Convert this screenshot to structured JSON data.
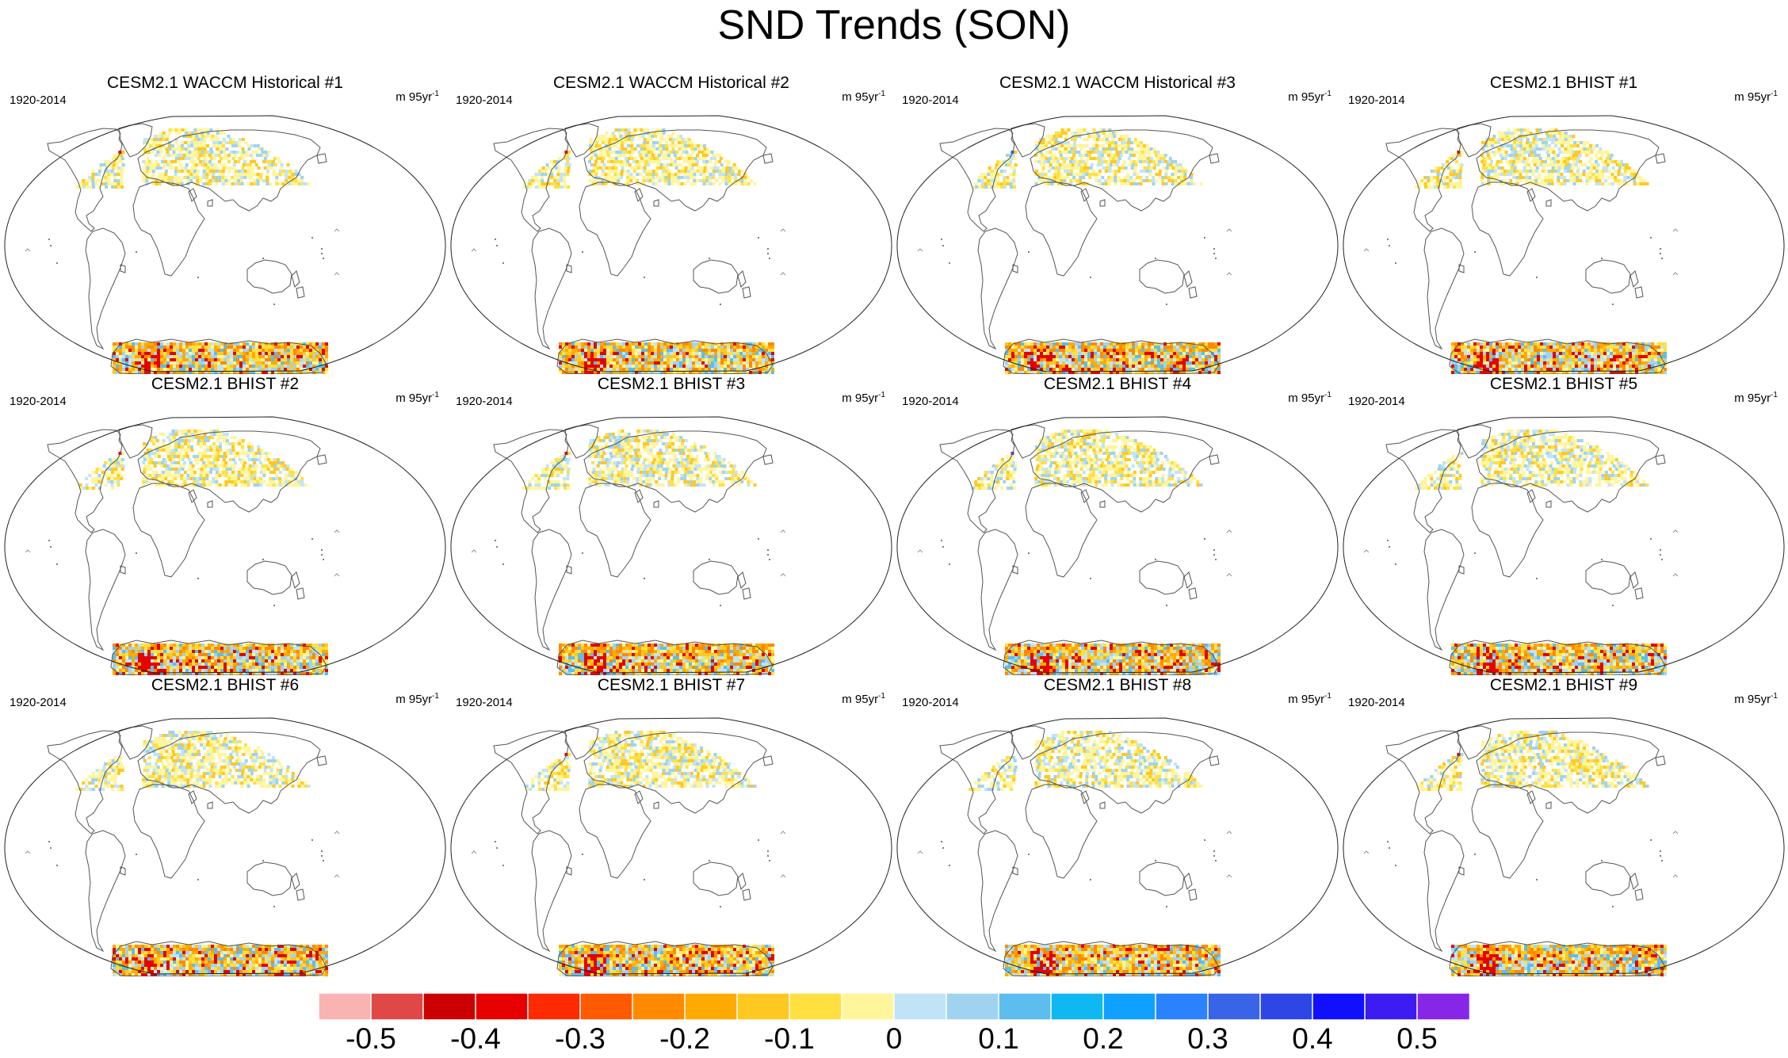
{
  "title": "SND Trends (SON)",
  "panels": [
    {
      "title": "CESM2.1 WACCM Historical #1",
      "period": "1920-2014",
      "units": "m 95yr",
      "units_sup": "-1"
    },
    {
      "title": "CESM2.1 WACCM Historical #2",
      "period": "1920-2014",
      "units": "m 95yr",
      "units_sup": "-1"
    },
    {
      "title": "CESM2.1 WACCM Historical #3",
      "period": "1920-2014",
      "units": "m 95yr",
      "units_sup": "-1"
    },
    {
      "title": "CESM2.1 BHIST #1",
      "period": "1920-2014",
      "units": "m 95yr",
      "units_sup": "-1"
    },
    {
      "title": "CESM2.1 BHIST #2",
      "period": "1920-2014",
      "units": "m 95yr",
      "units_sup": "-1"
    },
    {
      "title": "CESM2.1 BHIST #3",
      "period": "1920-2014",
      "units": "m 95yr",
      "units_sup": "-1"
    },
    {
      "title": "CESM2.1 BHIST #4",
      "period": "1920-2014",
      "units": "m 95yr",
      "units_sup": "-1"
    },
    {
      "title": "CESM2.1 BHIST #5",
      "period": "1920-2014",
      "units": "m 95yr",
      "units_sup": "-1"
    },
    {
      "title": "CESM2.1 BHIST #6",
      "period": "1920-2014",
      "units": "m 95yr",
      "units_sup": "-1"
    },
    {
      "title": "CESM2.1 BHIST #7",
      "period": "1920-2014",
      "units": "m 95yr",
      "units_sup": "-1"
    },
    {
      "title": "CESM2.1 BHIST #8",
      "period": "1920-2014",
      "units": "m 95yr",
      "units_sup": "-1"
    },
    {
      "title": "CESM2.1 BHIST #9",
      "period": "1920-2014",
      "units": "m 95yr",
      "units_sup": "-1"
    }
  ],
  "colorbar": {
    "colors": [
      "#f9b3b3",
      "#e04848",
      "#cc0000",
      "#e60000",
      "#ff2a00",
      "#ff5a00",
      "#ff8a00",
      "#ffaa00",
      "#ffc820",
      "#ffe040",
      "#fff59a",
      "#c0e4f6",
      "#9fd3ef",
      "#5cbdee",
      "#10b8f2",
      "#10a0ff",
      "#2a82ff",
      "#3a64e8",
      "#2e46e6",
      "#1010ff",
      "#3c1cf0",
      "#8826e8"
    ],
    "tick_labels": [
      "-0.5",
      "-0.4",
      "-0.3",
      "-0.2",
      "-0.1",
      "0",
      "0.1",
      "0.2",
      "0.3",
      "0.4",
      "0.5"
    ],
    "min": -0.55,
    "max": 0.55
  }
}
